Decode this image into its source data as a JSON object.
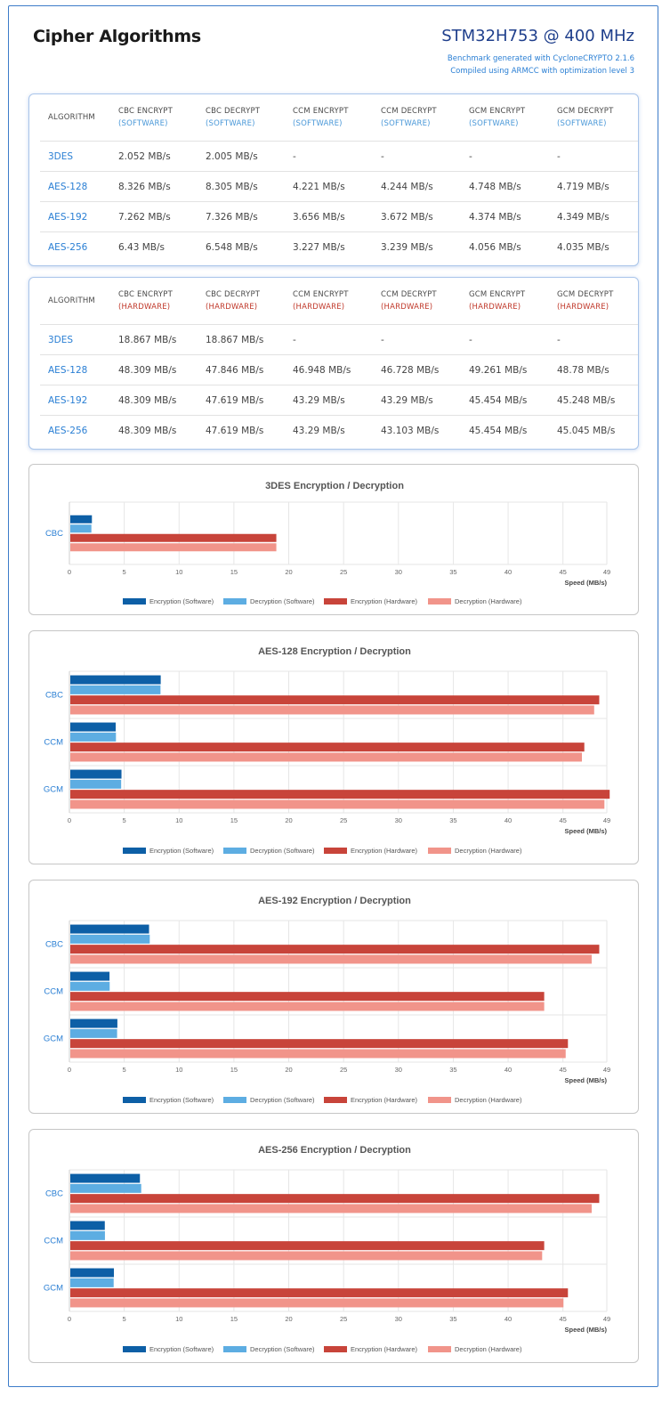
{
  "header": {
    "title": "Cipher Algorithms",
    "device": "STM32H753 @ 400 MHz",
    "note1": "Benchmark generated with CycloneCRYPTO 2.1.6",
    "note2": "Compiled using ARMCC with optimization level 3"
  },
  "tables": [
    {
      "mode": "(SOFTWARE)",
      "mode_color": "#4a98d8",
      "columns": [
        {
          "label": "ALGORITHM",
          "mode": ""
        },
        {
          "label": "CBC ENCRYPT",
          "mode": "(SOFTWARE)"
        },
        {
          "label": "CBC DECRYPT",
          "mode": "(SOFTWARE)"
        },
        {
          "label": "CCM ENCRYPT",
          "mode": "(SOFTWARE)"
        },
        {
          "label": "CCM DECRYPT",
          "mode": "(SOFTWARE)"
        },
        {
          "label": "GCM ENCRYPT",
          "mode": "(SOFTWARE)"
        },
        {
          "label": "GCM DECRYPT",
          "mode": "(SOFTWARE)"
        }
      ],
      "rows": [
        [
          "3DES",
          "2.052 MB/s",
          "2.005 MB/s",
          "-",
          "-",
          "-",
          "-"
        ],
        [
          "AES-128",
          "8.326 MB/s",
          "8.305 MB/s",
          "4.221 MB/s",
          "4.244 MB/s",
          "4.748 MB/s",
          "4.719 MB/s"
        ],
        [
          "AES-192",
          "7.262 MB/s",
          "7.326 MB/s",
          "3.656 MB/s",
          "3.672 MB/s",
          "4.374 MB/s",
          "4.349 MB/s"
        ],
        [
          "AES-256",
          "6.43 MB/s",
          "6.548 MB/s",
          "3.227 MB/s",
          "3.239 MB/s",
          "4.056 MB/s",
          "4.035 MB/s"
        ]
      ]
    },
    {
      "mode": "(HARDWARE)",
      "mode_color": "#c0392b",
      "columns": [
        {
          "label": "ALGORITHM",
          "mode": ""
        },
        {
          "label": "CBC ENCRYPT",
          "mode": "(HARDWARE)"
        },
        {
          "label": "CBC DECRYPT",
          "mode": "(HARDWARE)"
        },
        {
          "label": "CCM ENCRYPT",
          "mode": "(HARDWARE)"
        },
        {
          "label": "CCM DECRYPT",
          "mode": "(HARDWARE)"
        },
        {
          "label": "GCM ENCRYPT",
          "mode": "(HARDWARE)"
        },
        {
          "label": "GCM DECRYPT",
          "mode": "(HARDWARE)"
        }
      ],
      "rows": [
        [
          "3DES",
          "18.867 MB/s",
          "18.867 MB/s",
          "-",
          "-",
          "-",
          "-"
        ],
        [
          "AES-128",
          "48.309 MB/s",
          "47.846 MB/s",
          "46.948 MB/s",
          "46.728 MB/s",
          "49.261 MB/s",
          "48.78 MB/s"
        ],
        [
          "AES-192",
          "48.309 MB/s",
          "47.619 MB/s",
          "43.29 MB/s",
          "43.29 MB/s",
          "45.454 MB/s",
          "45.248 MB/s"
        ],
        [
          "AES-256",
          "48.309 MB/s",
          "47.619 MB/s",
          "43.29 MB/s",
          "43.103 MB/s",
          "45.454 MB/s",
          "45.045 MB/s"
        ]
      ]
    }
  ],
  "chart_data": [
    {
      "type": "bar",
      "orientation": "horizontal",
      "title": "3DES Encryption / Decryption",
      "xlabel": "Speed (MB/s)",
      "xlim": [
        0,
        49
      ],
      "xticks": [
        0,
        5,
        10,
        15,
        20,
        25,
        30,
        35,
        40,
        45,
        49
      ],
      "grid": true,
      "legend_position": "bottom",
      "categories": [
        "CBC"
      ],
      "series": [
        {
          "name": "Encryption (Software)",
          "color": "#0d5fa6",
          "values": [
            2.052
          ]
        },
        {
          "name": "Decryption (Software)",
          "color": "#5dade2",
          "values": [
            2.005
          ]
        },
        {
          "name": "Encryption (Hardware)",
          "color": "#c8443a",
          "values": [
            18.867
          ]
        },
        {
          "name": "Decryption (Hardware)",
          "color": "#f1948a",
          "values": [
            18.867
          ]
        }
      ]
    },
    {
      "type": "bar",
      "orientation": "horizontal",
      "title": "AES-128 Encryption / Decryption",
      "xlabel": "Speed (MB/s)",
      "xlim": [
        0,
        49
      ],
      "xticks": [
        0,
        5,
        10,
        15,
        20,
        25,
        30,
        35,
        40,
        45,
        49
      ],
      "grid": true,
      "legend_position": "bottom",
      "categories": [
        "CBC",
        "CCM",
        "GCM"
      ],
      "series": [
        {
          "name": "Encryption (Software)",
          "color": "#0d5fa6",
          "values": [
            8.326,
            4.221,
            4.748
          ]
        },
        {
          "name": "Decryption (Software)",
          "color": "#5dade2",
          "values": [
            8.305,
            4.244,
            4.719
          ]
        },
        {
          "name": "Encryption (Hardware)",
          "color": "#c8443a",
          "values": [
            48.309,
            46.948,
            49.261
          ]
        },
        {
          "name": "Decryption (Hardware)",
          "color": "#f1948a",
          "values": [
            47.846,
            46.728,
            48.78
          ]
        }
      ]
    },
    {
      "type": "bar",
      "orientation": "horizontal",
      "title": "AES-192 Encryption / Decryption",
      "xlabel": "Speed (MB/s)",
      "xlim": [
        0,
        49
      ],
      "xticks": [
        0,
        5,
        10,
        15,
        20,
        25,
        30,
        35,
        40,
        45,
        49
      ],
      "grid": true,
      "legend_position": "bottom",
      "categories": [
        "CBC",
        "CCM",
        "GCM"
      ],
      "series": [
        {
          "name": "Encryption (Software)",
          "color": "#0d5fa6",
          "values": [
            7.262,
            3.656,
            4.374
          ]
        },
        {
          "name": "Decryption (Software)",
          "color": "#5dade2",
          "values": [
            7.326,
            3.672,
            4.349
          ]
        },
        {
          "name": "Encryption (Hardware)",
          "color": "#c8443a",
          "values": [
            48.309,
            43.29,
            45.454
          ]
        },
        {
          "name": "Decryption (Hardware)",
          "color": "#f1948a",
          "values": [
            47.619,
            43.29,
            45.248
          ]
        }
      ]
    },
    {
      "type": "bar",
      "orientation": "horizontal",
      "title": "AES-256 Encryption / Decryption",
      "xlabel": "Speed (MB/s)",
      "xlim": [
        0,
        49
      ],
      "xticks": [
        0,
        5,
        10,
        15,
        20,
        25,
        30,
        35,
        40,
        45,
        49
      ],
      "grid": true,
      "legend_position": "bottom",
      "categories": [
        "CBC",
        "CCM",
        "GCM"
      ],
      "series": [
        {
          "name": "Encryption (Software)",
          "color": "#0d5fa6",
          "values": [
            6.43,
            3.227,
            4.056
          ]
        },
        {
          "name": "Decryption (Software)",
          "color": "#5dade2",
          "values": [
            6.548,
            3.239,
            4.035
          ]
        },
        {
          "name": "Encryption (Hardware)",
          "color": "#c8443a",
          "values": [
            48.309,
            43.29,
            45.454
          ]
        },
        {
          "name": "Decryption (Hardware)",
          "color": "#f1948a",
          "values": [
            47.619,
            43.103,
            45.045
          ]
        }
      ]
    }
  ]
}
